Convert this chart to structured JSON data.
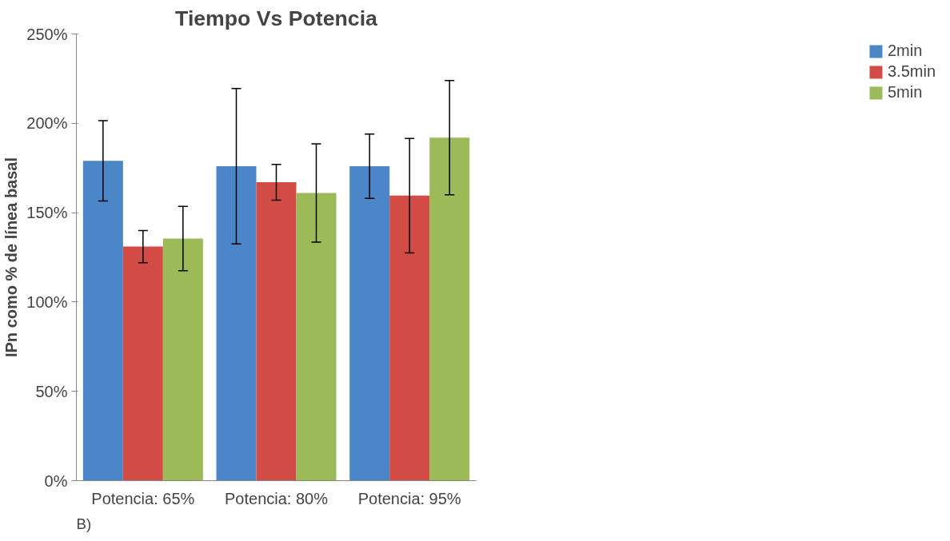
{
  "chart_data": {
    "type": "bar",
    "title": "Tiempo Vs Potencia",
    "ylabel": "IPn como % de línea basal",
    "categories": [
      "Potencia: 65%",
      "Potencia: 80%",
      "Potencia: 95%"
    ],
    "series": [
      {
        "name": "2min",
        "color": "#4a86c8",
        "values": [
          179,
          176,
          176
        ],
        "errors": [
          22.5,
          43.5,
          18
        ]
      },
      {
        "name": "3.5min",
        "color": "#d24c45",
        "values": [
          131,
          167,
          159.5
        ],
        "errors": [
          9,
          10,
          32
        ]
      },
      {
        "name": "5min",
        "color": "#9bbb59",
        "values": [
          135.5,
          161,
          192
        ],
        "errors": [
          18,
          27.5,
          32
        ]
      }
    ],
    "ylim": [
      0,
      250
    ],
    "yticks": [
      {
        "value": 0,
        "label": "0%"
      },
      {
        "value": 50,
        "label": "50%"
      },
      {
        "value": 100,
        "label": "100%"
      },
      {
        "value": 150,
        "label": "150%"
      },
      {
        "value": 200,
        "label": "200%"
      },
      {
        "value": 250,
        "label": "250%"
      }
    ],
    "grid": false,
    "legend": "right",
    "annotations": [
      "B)"
    ]
  }
}
